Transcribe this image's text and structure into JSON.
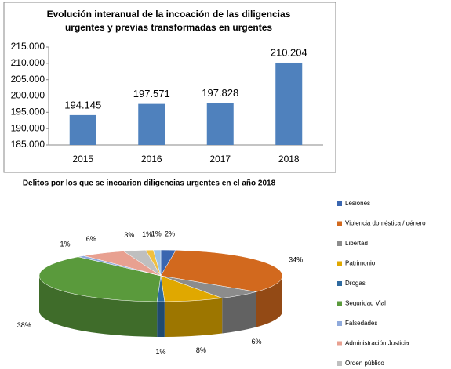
{
  "chart_data": [
    {
      "type": "bar",
      "title": "Evolución interanual de la incoación de las diligencias urgentes y previas transformadas en urgentes",
      "categories": [
        "2015",
        "2016",
        "2017",
        "2018"
      ],
      "values": [
        194145,
        197571,
        197828,
        210204
      ],
      "value_labels": [
        "194.145",
        "197.571",
        "197.828",
        "210.204"
      ],
      "color": "#4f81bd",
      "ylim": [
        185000,
        215000
      ],
      "yticks": [
        {
          "value": 185000,
          "label": "185.000"
        },
        {
          "value": 190000,
          "label": "190.000"
        },
        {
          "value": 195000,
          "label": "195.000"
        },
        {
          "value": 200000,
          "label": "200.000"
        },
        {
          "value": 205000,
          "label": "205.000"
        },
        {
          "value": 210000,
          "label": "210.000"
        },
        {
          "value": 215000,
          "label": "215.000"
        }
      ]
    },
    {
      "type": "pie",
      "title": "Delitos por los que se incoarion diligencias urgentes en el año 2018",
      "categories": [
        "Lesiones",
        "Violencia doméstica / género",
        "Libertad",
        "Patrimonio",
        "Drogas",
        "Seguridad Vial",
        "Falsedades",
        "Administración Justicia",
        "Orden público",
        null,
        null
      ],
      "values": [
        2,
        34,
        6,
        8,
        1,
        38,
        1,
        6,
        3,
        1,
        1
      ],
      "value_labels": [
        "2%",
        "34%",
        "6%",
        "8%",
        "1%",
        "38%",
        "1%",
        "6%",
        "3%",
        "1%",
        "1%"
      ],
      "colors": [
        "#3a66b0",
        "#d2691e",
        "#8c8c8c",
        "#e0a800",
        "#2e6aa0",
        "#5a9a3c",
        "#8faadc",
        "#e8a090",
        "#bfbfbf",
        "#f0c040",
        "#9dc3e6"
      ]
    }
  ]
}
